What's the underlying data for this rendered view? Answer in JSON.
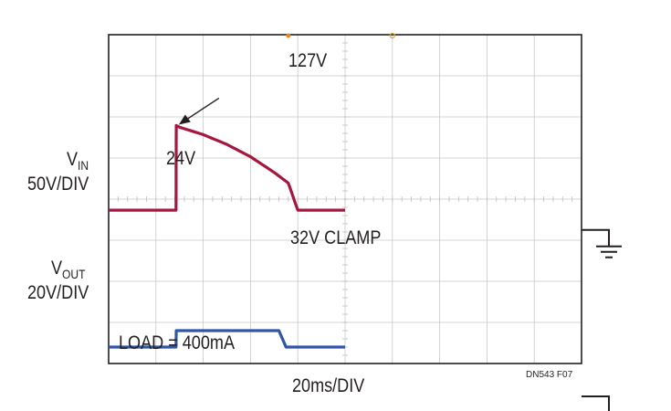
{
  "chart_data": {
    "type": "line",
    "title": "",
    "xlabel": "20ms/DIV",
    "x_units": "ms",
    "x_div_ms": 20,
    "divisions": {
      "x": 10,
      "y": 8
    },
    "grid": true,
    "series": [
      {
        "name": "VIN",
        "scale": "50V/DIV",
        "color": "#a6173d",
        "x": [
          0,
          28.5,
          28.6,
          30,
          40,
          50,
          60,
          70,
          76,
          80,
          100
        ],
        "y": [
          24,
          24,
          127,
          125,
          116,
          104,
          89,
          70,
          57,
          24,
          24
        ]
      },
      {
        "name": "VOUT",
        "scale": "20V/DIV",
        "color": "#2f57a6",
        "x": [
          0,
          28.5,
          28.6,
          50,
          72,
          75,
          100
        ],
        "y": [
          24,
          24,
          32,
          32,
          32,
          24,
          24
        ]
      }
    ],
    "annotations": {
      "vin_peak": "127V",
      "vin_level": "24V",
      "clamp": "32V CLAMP",
      "load": "LOAD = 400mA"
    }
  },
  "labels": {
    "vin_main": "V",
    "vin_sub": "IN",
    "vin_scale": "50V/DIV",
    "vout_main": "V",
    "vout_sub": "OUT",
    "vout_scale": "20V/DIV",
    "time_scale": "20ms/DIV",
    "figure_id": "DN543 F07"
  }
}
